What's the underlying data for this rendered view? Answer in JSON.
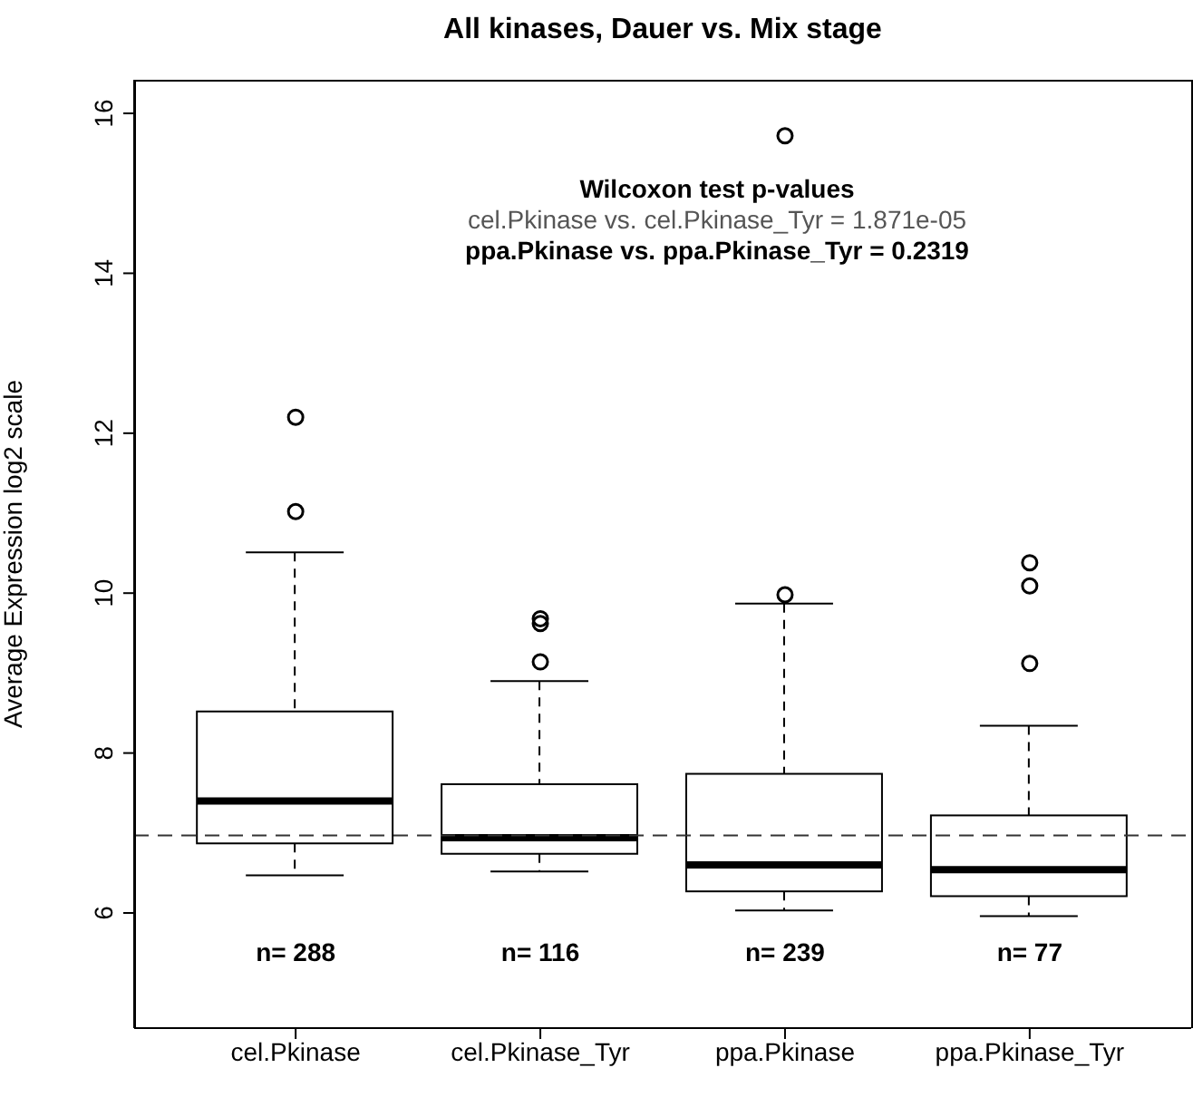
{
  "chart_data": {
    "type": "box",
    "title": "All kinases, Dauer vs. Mix stage",
    "ylabel": "Average Expression log2 scale",
    "categories": [
      "cel.Pkinase",
      "cel.Pkinase_Tyr",
      "ppa.Pkinase",
      "ppa.Pkinase_Tyr"
    ],
    "boxes": [
      {
        "low": 6.47,
        "q1": 6.87,
        "median": 7.4,
        "q3": 8.52,
        "high": 10.51,
        "outliers": [
          11.02,
          12.2
        ]
      },
      {
        "low": 6.52,
        "q1": 6.74,
        "median": 6.94,
        "q3": 7.61,
        "high": 8.9,
        "outliers": [
          9.14,
          9.62,
          9.68
        ]
      },
      {
        "low": 6.03,
        "q1": 6.27,
        "median": 6.6,
        "q3": 7.74,
        "high": 9.87,
        "outliers": [
          9.98,
          15.72
        ]
      },
      {
        "low": 5.96,
        "q1": 6.21,
        "median": 6.54,
        "q3": 7.22,
        "high": 8.34,
        "outliers": [
          9.12,
          10.09,
          10.38
        ]
      }
    ],
    "ylim": [
      4.56,
      16.42
    ],
    "yticks": [
      6,
      8,
      10,
      12,
      14,
      16
    ],
    "grid": false,
    "ref_lines": [
      {
        "axis": "y",
        "value": 6.97,
        "line_style": "dashed"
      }
    ],
    "annotations": [
      "Wilcoxon test p-values",
      "cel.Pkinase vs. cel.Pkinase_Tyr =  1.871e-05",
      "ppa.Pkinase vs. ppa.Pkinase_Tyr =  0.2319",
      "n= 288",
      "n= 116",
      "n= 239",
      "n= 77"
    ]
  }
}
